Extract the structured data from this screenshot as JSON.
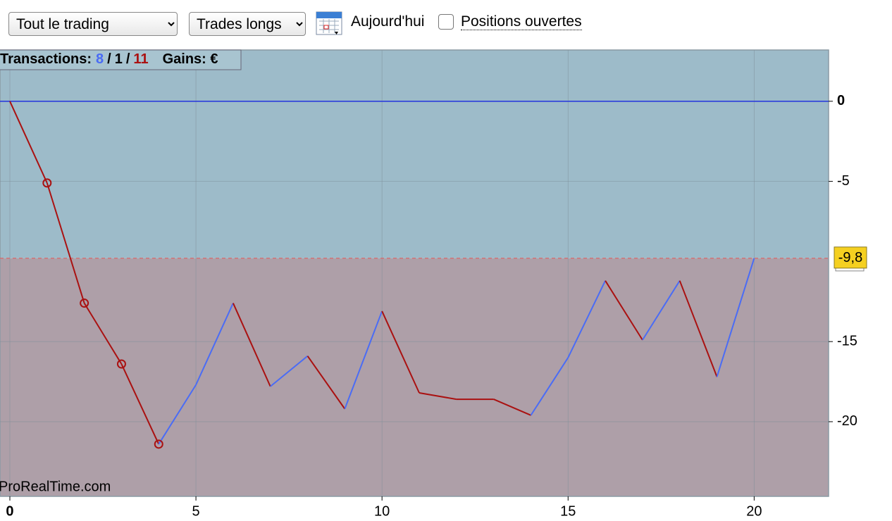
{
  "toolbar": {
    "scope_select": "Tout le trading",
    "direction_select": "Trades longs",
    "date_label": "Aujourd'hui",
    "open_positions_label": "Positions ouvertes"
  },
  "chart_data": {
    "type": "line",
    "legend": {
      "label": "Transactions:",
      "up_count": 8,
      "flat_count": 1,
      "down_count": 11,
      "gains_label": "Gains: €"
    },
    "watermark": "ProRealTime.com",
    "x": [
      0,
      1,
      2,
      3,
      4,
      5,
      6,
      7,
      8,
      9,
      10,
      11,
      12,
      13,
      14,
      15,
      16,
      17,
      18,
      19,
      20
    ],
    "values": [
      0,
      -5.1,
      -12.6,
      -16.4,
      -21.4,
      -17.7,
      -12.6,
      -17.8,
      -15.9,
      -19.2,
      -13.1,
      -18.2,
      -18.6,
      -18.6,
      -19.6,
      -16.0,
      -11.2,
      -14.9,
      -11.2,
      -17.2,
      -9.8
    ],
    "up_color": "#4a6cf5",
    "down_color": "#aa1111",
    "marker_points": [
      1,
      2,
      3,
      4
    ],
    "last_value": {
      "value": -9.8,
      "label": "-9,8"
    },
    "above_color": "#9dbbc9",
    "below_color": "#ae9fa8",
    "zero_line_color": "#2233dd",
    "xlim": [
      -0.265,
      22
    ],
    "ylim": [
      -24.66,
      3.2
    ],
    "xticks": [
      0,
      5,
      10,
      15,
      20
    ],
    "yticks": [
      0,
      -5,
      -15,
      -20
    ],
    "grid": true
  }
}
